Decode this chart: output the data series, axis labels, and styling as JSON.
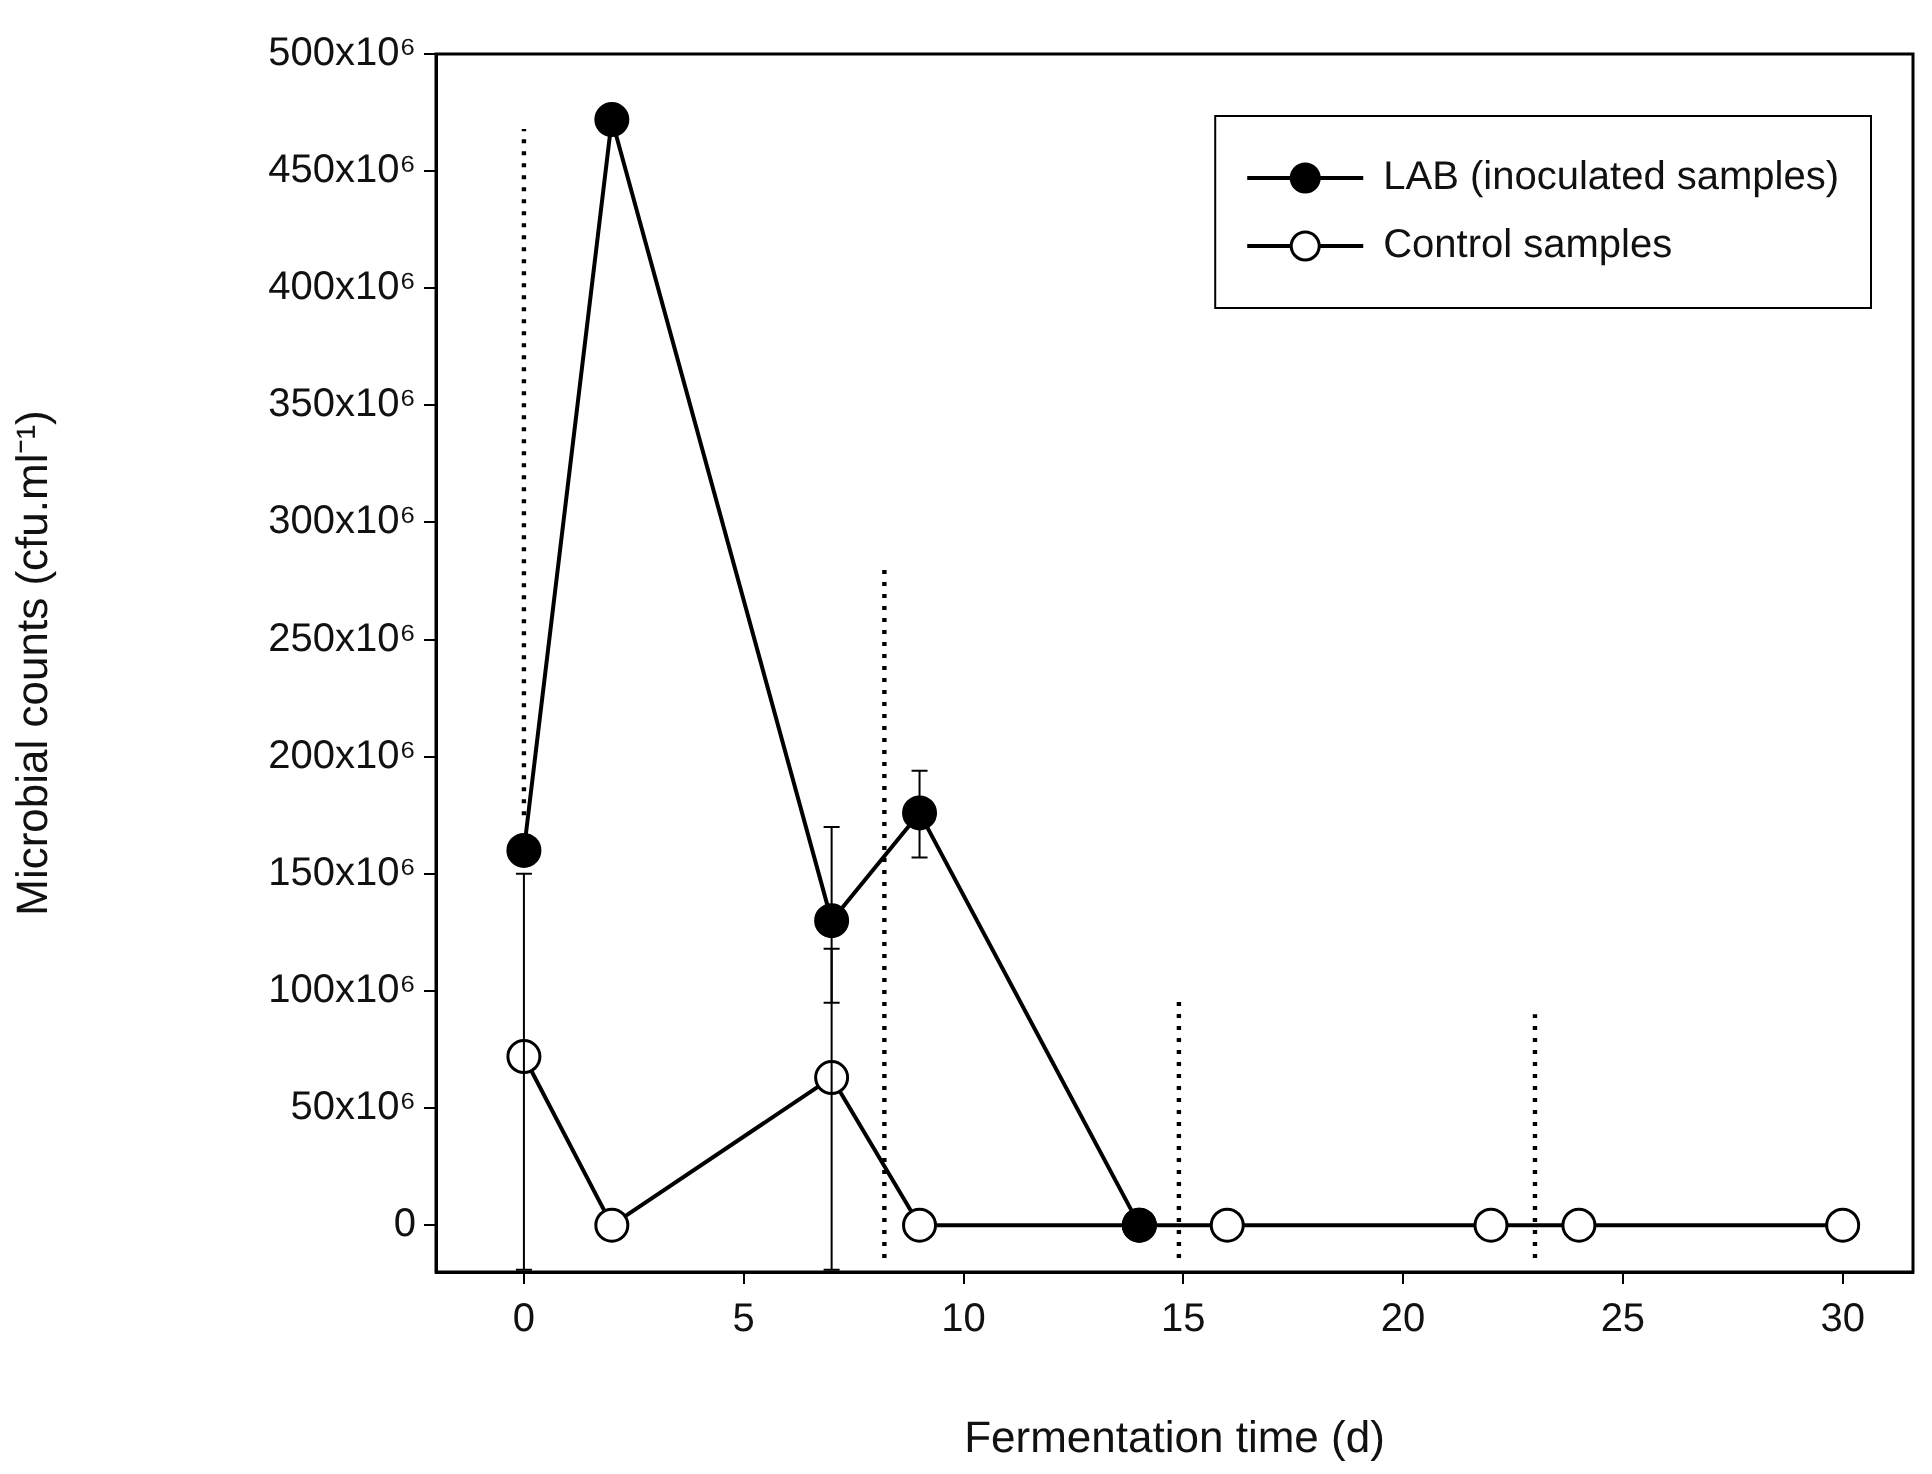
{
  "chart_data": {
    "type": "line",
    "xlabel": "Fermentation time (d)",
    "ylabel": "Microbial counts (cfu.ml⁻¹)",
    "xlim": [
      -2,
      31.6
    ],
    "xticks": [
      0,
      5,
      10,
      15,
      20,
      25,
      30
    ],
    "ylim": [
      -20000000,
      500000000
    ],
    "yticks": [
      0,
      {
        "value": 50000000,
        "label": "50x10⁶"
      },
      {
        "value": 100000000,
        "label": "100x10⁶"
      },
      {
        "value": 150000000,
        "label": "150x10⁶"
      },
      {
        "value": 200000000,
        "label": "200x10⁶"
      },
      {
        "value": 250000000,
        "label": "250x10⁶"
      },
      {
        "value": 300000000,
        "label": "300x10⁶"
      },
      {
        "value": 350000000,
        "label": "350x10⁶"
      },
      {
        "value": 400000000,
        "label": "400x10⁶"
      },
      {
        "value": 450000000,
        "label": "450x10⁶"
      },
      {
        "value": 500000000,
        "label": "500x10⁶"
      }
    ],
    "grid": false,
    "legend": "top right",
    "marker": "circle",
    "line_style": "solid",
    "series": [
      {
        "name": "LAB (inoculated samples)",
        "color": "#000000",
        "x": [
          0,
          2,
          7,
          9,
          14
        ],
        "values": [
          160000000,
          472000000,
          130000000,
          176000000,
          0
        ],
        "errors": [
          null,
          null,
          [
            95000000,
            170000000
          ],
          [
            157000000,
            194000000
          ],
          null
        ]
      },
      {
        "name": "Control samples",
        "color": "#000000",
        "x": [
          0,
          2,
          7,
          9,
          14,
          16,
          22,
          24,
          30
        ],
        "values": [
          72000000,
          0,
          63000000,
          0,
          0,
          0,
          0,
          0,
          0
        ],
        "errors": [
          [
            -19000000,
            150000000
          ],
          null,
          [
            -19000000,
            118000000
          ],
          null,
          null,
          null,
          null,
          null,
          null
        ]
      },
      {
        "color": "#000000",
        "marker": "none",
        "line_style": "dotted",
        "x": [
          0,
          0
        ],
        "values": [
          175000000,
          468000000
        ]
      },
      {
        "color": "#000000",
        "marker": "none",
        "line_style": "dotted",
        "x": [
          8.2,
          8.2
        ],
        "values": [
          -14000000,
          280000000
        ]
      },
      {
        "color": "#000000",
        "marker": "none",
        "line_style": "dotted",
        "x": [
          14.9,
          14.9
        ],
        "values": [
          -14000000,
          97000000
        ]
      },
      {
        "color": "#000000",
        "marker": "none",
        "line_style": "dotted",
        "x": [
          23,
          23
        ],
        "values": [
          -14000000,
          90000000
        ]
      }
    ]
  }
}
